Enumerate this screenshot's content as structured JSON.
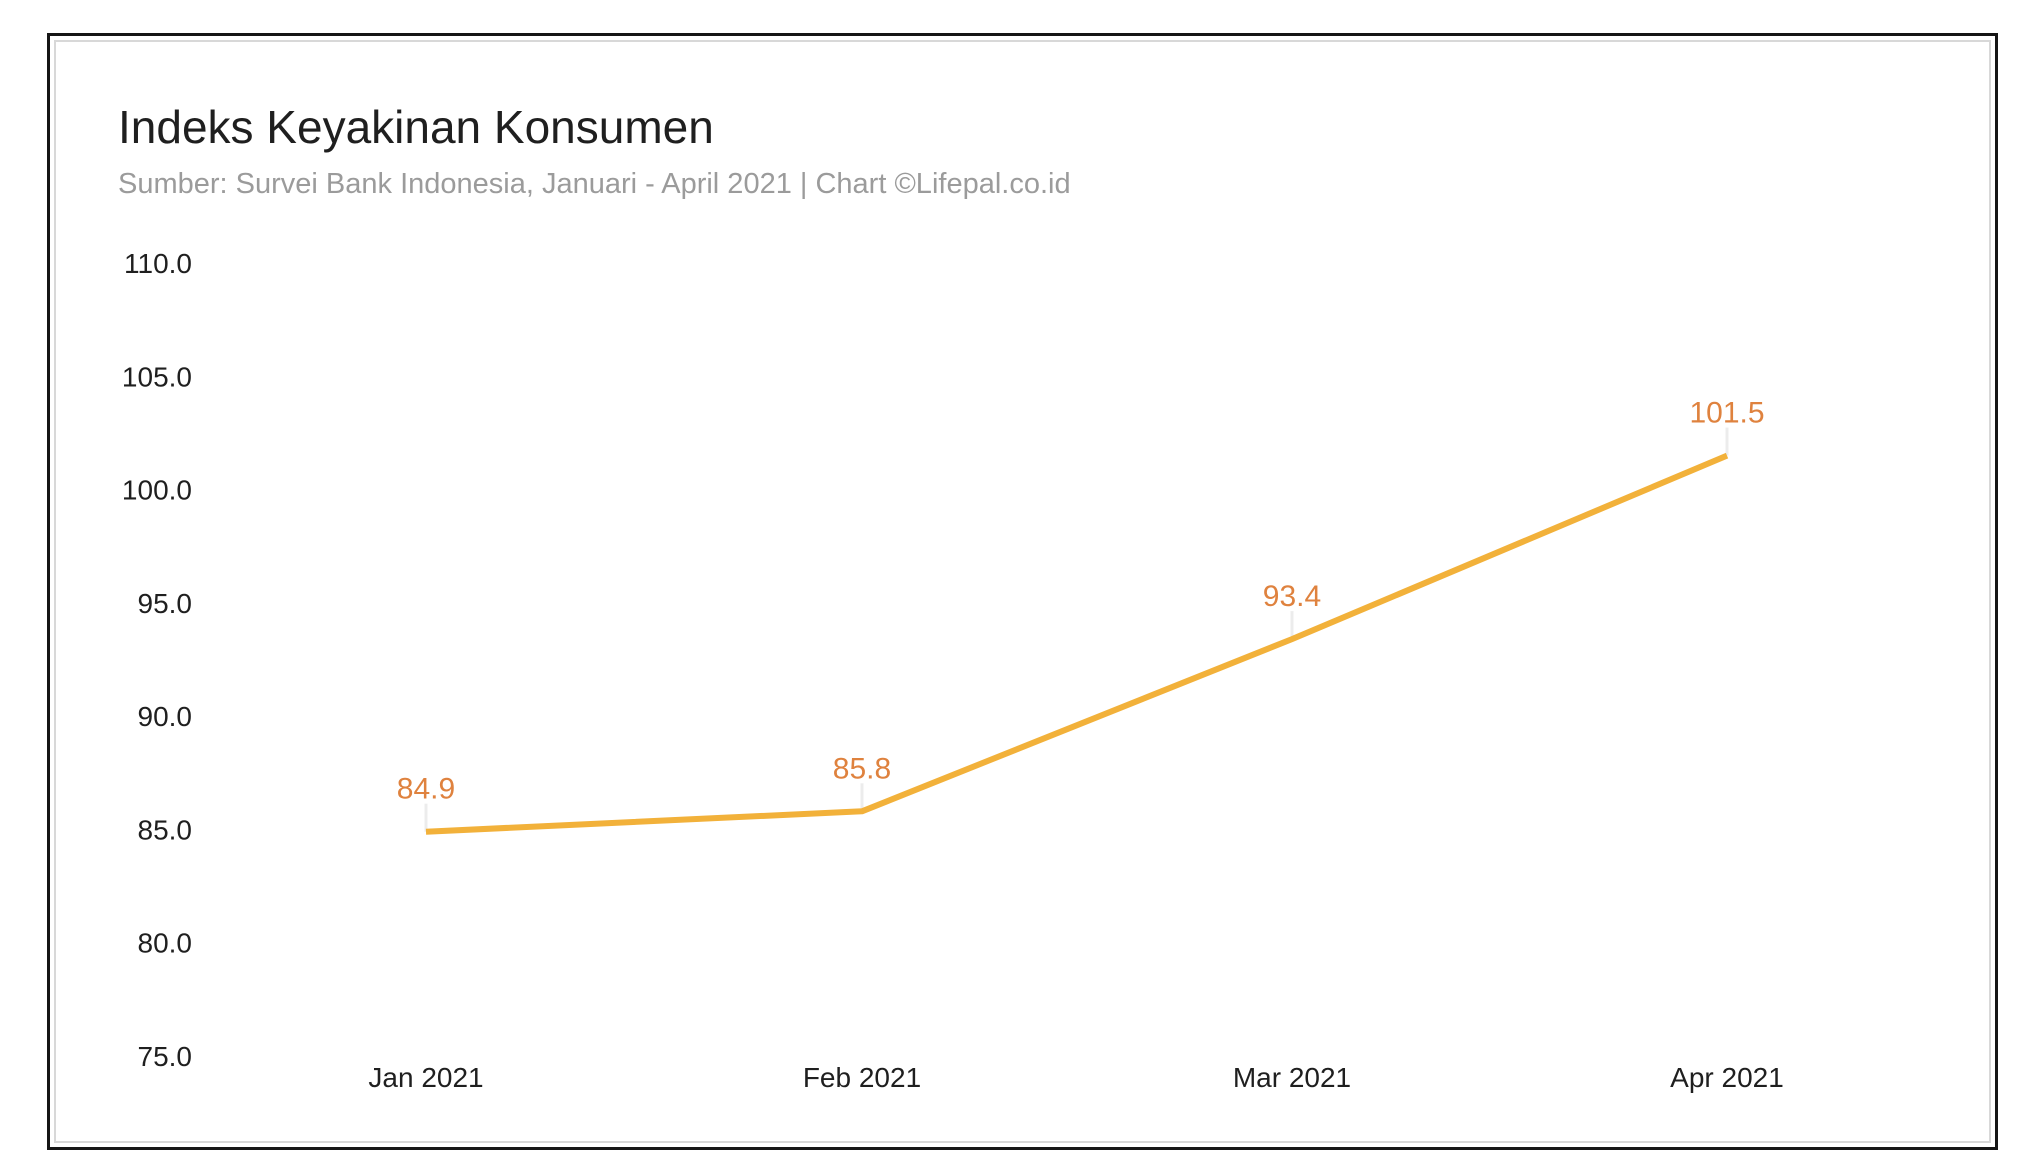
{
  "page": {
    "title": "Indeks Keyakinan Konsumen",
    "subtitle": "Sumber: Survei Bank Indonesia, Januari - April 2021 | Chart ©Lifepal.co.id"
  },
  "chart_data": {
    "type": "line",
    "title": "Indeks Keyakinan Konsumen",
    "subtitle": "Sumber: Survei Bank Indonesia, Januari - April 2021 | Chart ©Lifepal.co.id",
    "categories": [
      "Jan 2021",
      "Feb 2021",
      "Mar 2021",
      "Apr 2021"
    ],
    "series": [
      {
        "name": "Indeks Keyakinan Konsumen",
        "values": [
          84.9,
          85.8,
          93.4,
          101.5
        ]
      }
    ],
    "data_labels": [
      "84.9",
      "85.8",
      "93.4",
      "101.5"
    ],
    "y_tick_labels": [
      "110.0",
      "105.0",
      "100.0",
      "95.0",
      "90.0",
      "85.0",
      "80.0",
      "75.0"
    ],
    "ylim": [
      75,
      110
    ],
    "xlabel": "",
    "ylabel": "",
    "grid": false,
    "legend_position": "none",
    "colors": {
      "line": "#f2b13a",
      "data_label": "#df823e",
      "axis_text": "#1f1f1f",
      "subtitle_text": "#9b9b9b",
      "connector": "#ececec",
      "frame_outer": "#161616",
      "frame_inner": "#d8d8d8"
    }
  }
}
